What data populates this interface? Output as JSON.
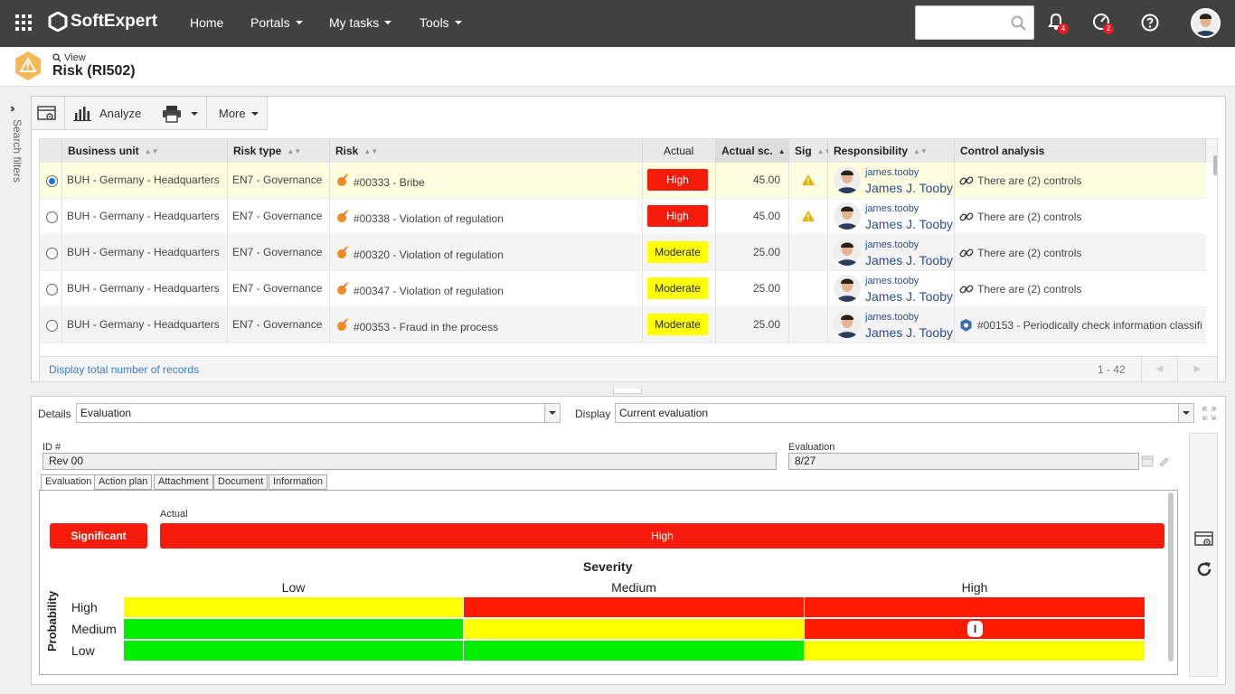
{
  "topbar": {
    "brand": "SoftExpert",
    "nav": [
      "Home",
      "Portals",
      "My tasks",
      "Tools"
    ],
    "notifications_count": "4",
    "tasks_count": "2",
    "search_placeholder": ""
  },
  "page": {
    "view_label": "View",
    "title": "Risk (RI502)",
    "search_filters_label": "Search filters"
  },
  "toolbar": {
    "analyze_label": "Analyze",
    "more_label": "More"
  },
  "grid": {
    "columns": [
      "Business unit",
      "Risk type",
      "Risk",
      "Actual",
      "Actual sc.",
      "Sig",
      "Responsibility",
      "Control analysis"
    ],
    "rows": [
      {
        "bu": "BUH - Germany - Headquarters",
        "type": "EN7 - Governance",
        "risk": "#00333 - Bribe",
        "actual": "High",
        "score": "45.00",
        "sig": true,
        "user": "james.tooby",
        "user_full": "James J. Tooby",
        "control": "There are (2) controls",
        "selected": true
      },
      {
        "bu": "BUH - Germany - Headquarters",
        "type": "EN7 - Governance",
        "risk": "#00338 - Violation of regulation",
        "actual": "High",
        "score": "45.00",
        "sig": true,
        "user": "james.tooby",
        "user_full": "James J. Tooby",
        "control": "There are (2) controls",
        "selected": false
      },
      {
        "bu": "BUH - Germany - Headquarters",
        "type": "EN7 - Governance",
        "risk": "#00320 - Violation of regulation",
        "actual": "Moderate",
        "score": "25.00",
        "sig": false,
        "user": "james.tooby",
        "user_full": "James J. Tooby",
        "control": "There are (2) controls",
        "selected": false
      },
      {
        "bu": "BUH - Germany - Headquarters",
        "type": "EN7 - Governance",
        "risk": "#00347 - Violation of regulation",
        "actual": "Moderate",
        "score": "25.00",
        "sig": false,
        "user": "james.tooby",
        "user_full": "James J. Tooby",
        "control": "There are (2) controls",
        "selected": false
      },
      {
        "bu": "BUH - Germany - Headquarters",
        "type": "EN7 - Governance",
        "risk": "#00353 - Fraud in the process",
        "actual": "Moderate",
        "score": "25.00",
        "sig": false,
        "user": "james.tooby",
        "user_full": "James J. Tooby",
        "control": "#00153 - Periodically check information classifi",
        "selected": false
      }
    ],
    "display_total_label": "Display total number of records",
    "pagination": "1 - 42"
  },
  "detail": {
    "details_label": "Details",
    "details_value": "Evaluation",
    "display_label": "Display",
    "display_value": "Current evaluation",
    "id_label": "ID #",
    "id_value": "Rev 00",
    "evaluation_label": "Evaluation",
    "evaluation_value": "8/27",
    "tabs": [
      "Evaluation",
      "Action plan",
      "Attachment",
      "Document",
      "Information"
    ],
    "significant_label": "Significant",
    "actual_label": "Actual",
    "actual_value": "High",
    "severity_label": "Severity",
    "probability_label": "Probability",
    "severity_levels": [
      "Low",
      "Medium",
      "High"
    ],
    "probability_levels": [
      "High",
      "Medium",
      "Low"
    ],
    "matrix_colors": [
      [
        "#ffff00",
        "#ff1a00",
        "#ff1a00"
      ],
      [
        "#00ee00",
        "#ffff00",
        "#ff1a00"
      ],
      [
        "#00ee00",
        "#00ee00",
        "#ffff00"
      ]
    ],
    "marker_label": "I"
  },
  "colors": {
    "high": "#f71b0b",
    "moderate": "#ffff05",
    "low": "#00ee00",
    "topbar": "#414141",
    "link": "#3a7fc4"
  }
}
